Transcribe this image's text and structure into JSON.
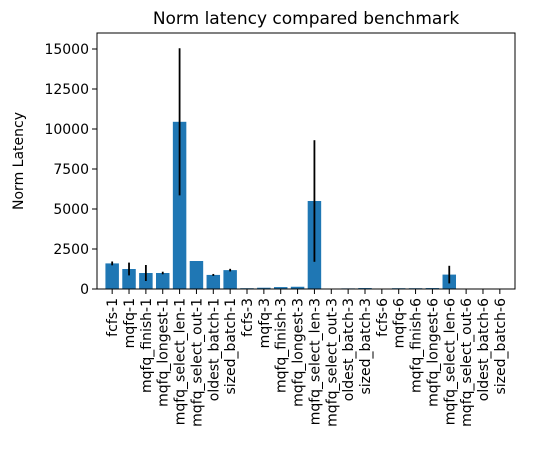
{
  "chart_data": {
    "type": "bar",
    "title": "Norm latency compared benchmark",
    "xlabel": "",
    "ylabel": "Norm Latency",
    "ylim": [
      0,
      16000
    ],
    "yticks": [
      "0",
      "2500",
      "5000",
      "7500",
      "10000",
      "12500",
      "15000"
    ],
    "ytick_values": [
      0,
      2500,
      5000,
      7500,
      10000,
      12500,
      15000
    ],
    "grid": false,
    "bar_color": "#1f77b4",
    "error_color": "#000000",
    "categories": [
      "fcfs-1",
      "mqfq-1",
      "mqfq_finish-1",
      "mqfq_longest-1",
      "mqfq_select_len-1",
      "mqfq_select_out-1",
      "oldest_batch-1",
      "sized_batch-1",
      "fcfs-3",
      "mqfq-3",
      "mqfq_finish-3",
      "mqfq_longest-3",
      "mqfq_select_len-3",
      "mqfq_select_out-3",
      "oldest_batch-3",
      "sized_batch-3",
      "fcfs-6",
      "mqfq-6",
      "mqfq_finish-6",
      "mqfq_longest-6",
      "mqfq_select_len-6",
      "mqfq_select_out-6",
      "oldest_batch-6",
      "sized_batch-6"
    ],
    "values": [
      1600,
      1250,
      1000,
      1000,
      10450,
      1750,
      880,
      1180,
      50,
      80,
      120,
      140,
      5500,
      0,
      40,
      60,
      30,
      50,
      50,
      60,
      900,
      0,
      0,
      0
    ],
    "errors": [
      120,
      400,
      500,
      80,
      4600,
      0,
      60,
      80,
      0,
      0,
      0,
      0,
      3800,
      0,
      0,
      0,
      0,
      0,
      0,
      0,
      550,
      0,
      0,
      0
    ]
  }
}
